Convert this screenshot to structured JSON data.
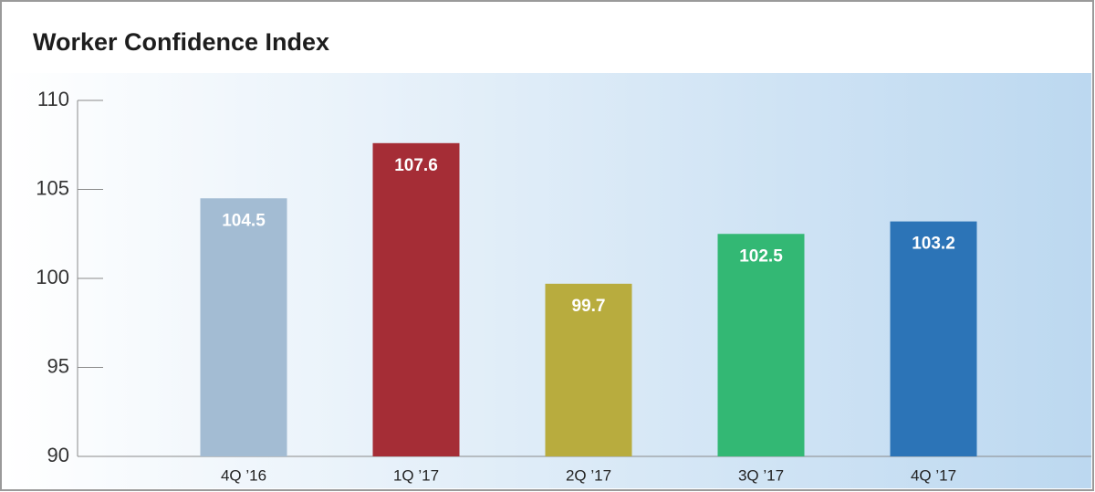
{
  "chart_data": {
    "type": "bar",
    "title": "Worker Confidence Index",
    "categories": [
      "4Q ’16",
      "1Q ’17",
      "2Q ’17",
      "3Q ’17",
      "4Q ’17"
    ],
    "values": [
      104.5,
      107.6,
      99.7,
      102.5,
      103.2
    ],
    "colors": [
      "#a3bcd3",
      "#a52d36",
      "#b8ac3e",
      "#33b874",
      "#2c74b7"
    ],
    "ylim": [
      90,
      110
    ],
    "yticks": [
      90,
      95,
      100,
      105,
      110
    ]
  }
}
